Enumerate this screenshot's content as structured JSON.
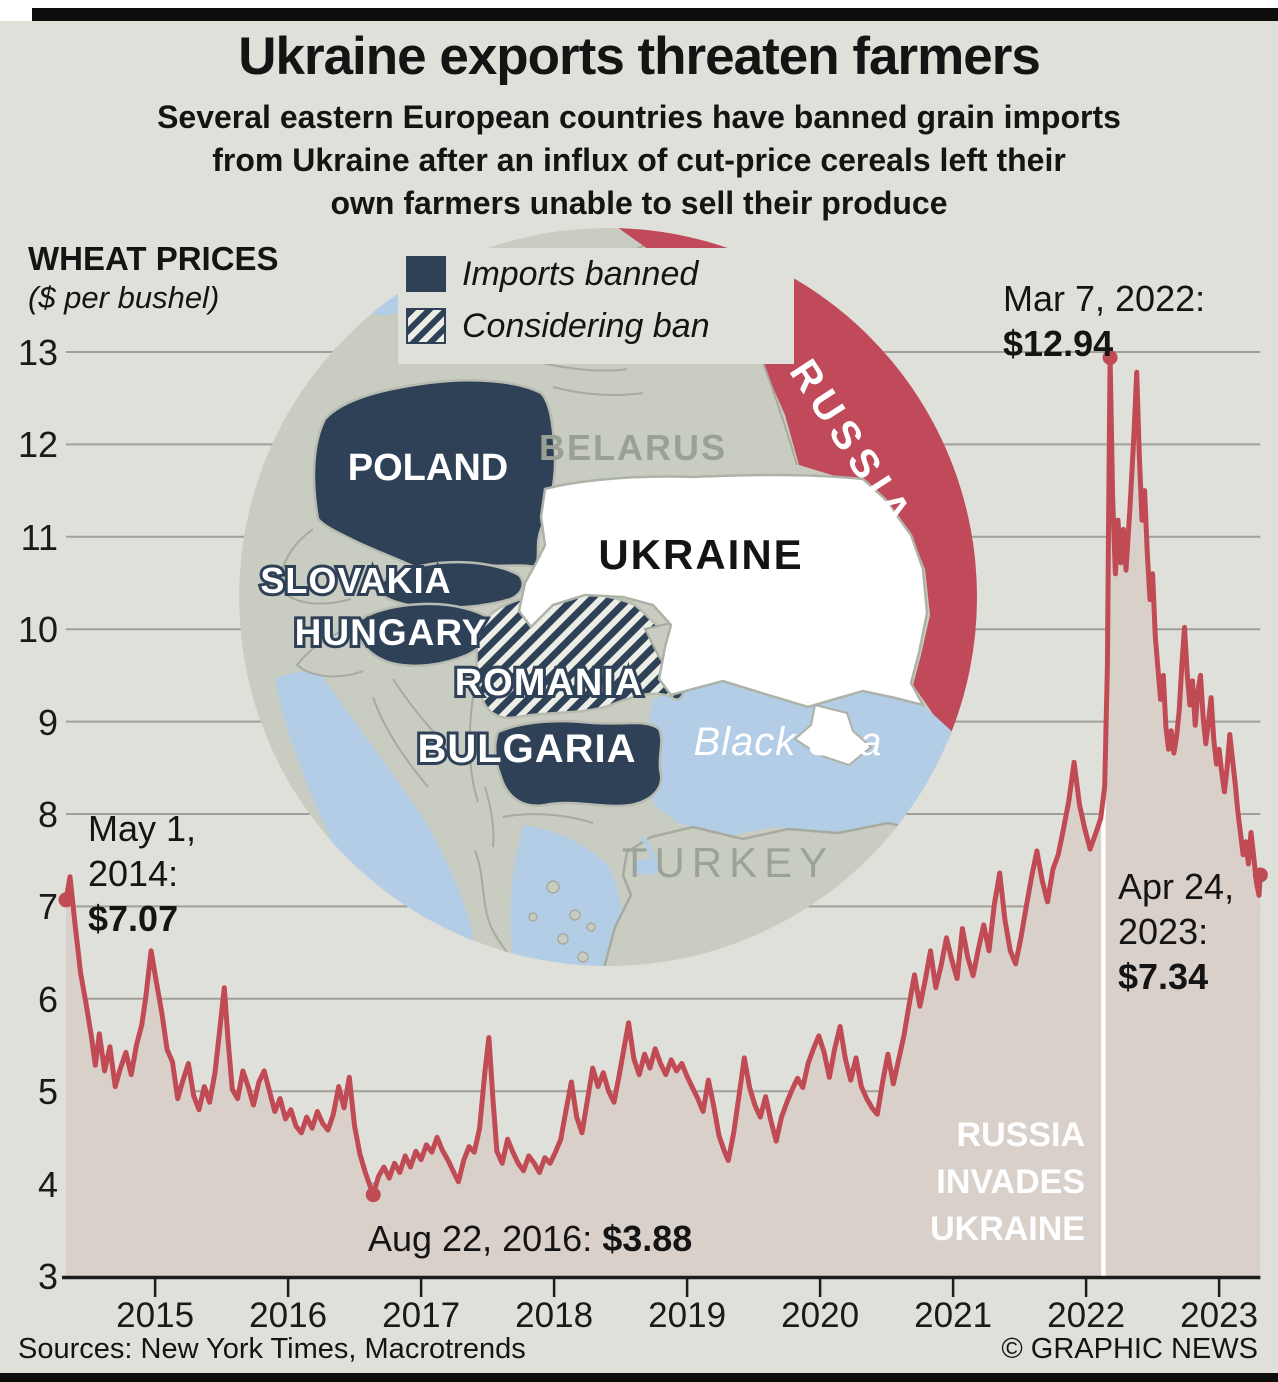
{
  "header": {
    "title": "Ukraine exports threaten farmers",
    "subtitle_line1": "Several eastern European countries have banned grain imports",
    "subtitle_line2": "from Ukraine after an influx of cut-price cereals left their",
    "subtitle_line3": "own farmers unable to sell their produce"
  },
  "legend": {
    "imports_banned": "Imports banned",
    "considering_ban": "Considering ban"
  },
  "map": {
    "labels": {
      "poland": "POLAND",
      "slovakia": "SLOVAKIA",
      "hungary": "HUNGARY",
      "romania": "ROMANIA",
      "bulgaria": "BULGARIA",
      "ukraine": "UKRAINE",
      "belarus": "BELARUS",
      "russia": "RUSSIA",
      "turkey": "TURKEY",
      "black_sea": "Black Sea"
    },
    "status": {
      "imports_banned": [
        "Poland",
        "Slovakia",
        "Hungary",
        "Bulgaria"
      ],
      "considering_ban": [
        "Romania"
      ]
    },
    "colors": {
      "banned_navy": "#2e4157",
      "russia_red": "#c04a5a",
      "land_gray": "#c9ccc0",
      "sea_blue": "#b4cde7",
      "ukraine_white": "#ffffff",
      "border_gray": "#a7ab9f"
    }
  },
  "annotations": {
    "start": {
      "line1": "May 1,",
      "line2": "2014:",
      "value": "$7.07"
    },
    "low": {
      "prefix": "Aug 22, 2016: ",
      "value": "$3.88"
    },
    "peak": {
      "line1": "Mar 7, 2022:",
      "value": "$12.94"
    },
    "end": {
      "line1": "Apr 24,",
      "line2": "2023:",
      "value": "$7.34"
    },
    "invasion": {
      "line1": "RUSSIA",
      "line2": "INVADES",
      "line3": "UKRAINE"
    }
  },
  "footer": {
    "sources": "Sources: New York Times, Macrotrends",
    "credit": "© GRAPHIC NEWS"
  },
  "chart_data": {
    "type": "line",
    "title": "WHEAT PRICES",
    "ylabel": "($ per bushel)",
    "ylim": [
      3,
      13
    ],
    "y_ticks": [
      3,
      4,
      5,
      6,
      7,
      8,
      9,
      10,
      11,
      12,
      13
    ],
    "x_ticks": [
      2015,
      2016,
      2017,
      2018,
      2019,
      2020,
      2021,
      2022,
      2023
    ],
    "grid": true,
    "line_color": "#c04b55",
    "area_color": "#d9d0ca",
    "invasion_marker": {
      "t": 2022.13,
      "label": "RUSSIA INVADES UKRAINE"
    },
    "key_points": [
      {
        "t": 2014.33,
        "v": 7.07,
        "label": "May 1, 2014: $7.07"
      },
      {
        "t": 2016.64,
        "v": 3.88,
        "label": "Aug 22, 2016: $3.88"
      },
      {
        "t": 2022.18,
        "v": 12.94,
        "label": "Mar 7, 2022: $12.94"
      },
      {
        "t": 2023.31,
        "v": 7.34,
        "label": "Apr 24, 2023: $7.34"
      }
    ],
    "points": [
      [
        2014.33,
        7.07
      ],
      [
        2014.36,
        7.32
      ],
      [
        2014.4,
        6.78
      ],
      [
        2014.44,
        6.28
      ],
      [
        2014.48,
        5.95
      ],
      [
        2014.52,
        5.6
      ],
      [
        2014.55,
        5.28
      ],
      [
        2014.58,
        5.62
      ],
      [
        2014.62,
        5.22
      ],
      [
        2014.66,
        5.48
      ],
      [
        2014.7,
        5.05
      ],
      [
        2014.74,
        5.25
      ],
      [
        2014.78,
        5.42
      ],
      [
        2014.82,
        5.18
      ],
      [
        2014.86,
        5.5
      ],
      [
        2014.9,
        5.72
      ],
      [
        2014.93,
        6.02
      ],
      [
        2014.97,
        6.52
      ],
      [
        2015.01,
        6.18
      ],
      [
        2015.05,
        5.85
      ],
      [
        2015.09,
        5.45
      ],
      [
        2015.13,
        5.32
      ],
      [
        2015.17,
        4.92
      ],
      [
        2015.21,
        5.12
      ],
      [
        2015.25,
        5.3
      ],
      [
        2015.29,
        4.95
      ],
      [
        2015.33,
        4.8
      ],
      [
        2015.37,
        5.05
      ],
      [
        2015.41,
        4.88
      ],
      [
        2015.45,
        5.2
      ],
      [
        2015.49,
        5.72
      ],
      [
        2015.52,
        6.12
      ],
      [
        2015.55,
        5.52
      ],
      [
        2015.58,
        5.02
      ],
      [
        2015.62,
        4.92
      ],
      [
        2015.66,
        5.22
      ],
      [
        2015.7,
        5.05
      ],
      [
        2015.74,
        4.85
      ],
      [
        2015.78,
        5.1
      ],
      [
        2015.82,
        5.22
      ],
      [
        2015.86,
        5.0
      ],
      [
        2015.9,
        4.78
      ],
      [
        2015.94,
        4.92
      ],
      [
        2015.98,
        4.7
      ],
      [
        2016.02,
        4.8
      ],
      [
        2016.06,
        4.62
      ],
      [
        2016.1,
        4.55
      ],
      [
        2016.14,
        4.72
      ],
      [
        2016.18,
        4.6
      ],
      [
        2016.22,
        4.78
      ],
      [
        2016.26,
        4.65
      ],
      [
        2016.3,
        4.58
      ],
      [
        2016.34,
        4.75
      ],
      [
        2016.38,
        5.05
      ],
      [
        2016.42,
        4.82
      ],
      [
        2016.46,
        5.15
      ],
      [
        2016.5,
        4.62
      ],
      [
        2016.54,
        4.32
      ],
      [
        2016.58,
        4.12
      ],
      [
        2016.61,
        4.0
      ],
      [
        2016.64,
        3.88
      ],
      [
        2016.68,
        4.08
      ],
      [
        2016.72,
        4.18
      ],
      [
        2016.76,
        4.06
      ],
      [
        2016.8,
        4.22
      ],
      [
        2016.84,
        4.12
      ],
      [
        2016.88,
        4.3
      ],
      [
        2016.92,
        4.18
      ],
      [
        2016.96,
        4.35
      ],
      [
        2017.0,
        4.26
      ],
      [
        2017.04,
        4.42
      ],
      [
        2017.08,
        4.34
      ],
      [
        2017.12,
        4.5
      ],
      [
        2017.16,
        4.36
      ],
      [
        2017.2,
        4.26
      ],
      [
        2017.24,
        4.14
      ],
      [
        2017.28,
        4.02
      ],
      [
        2017.32,
        4.25
      ],
      [
        2017.36,
        4.4
      ],
      [
        2017.4,
        4.34
      ],
      [
        2017.44,
        4.6
      ],
      [
        2017.48,
        5.22
      ],
      [
        2017.51,
        5.58
      ],
      [
        2017.54,
        4.92
      ],
      [
        2017.57,
        4.35
      ],
      [
        2017.61,
        4.22
      ],
      [
        2017.65,
        4.48
      ],
      [
        2017.69,
        4.34
      ],
      [
        2017.73,
        4.22
      ],
      [
        2017.77,
        4.14
      ],
      [
        2017.81,
        4.3
      ],
      [
        2017.85,
        4.22
      ],
      [
        2017.89,
        4.12
      ],
      [
        2017.93,
        4.28
      ],
      [
        2017.97,
        4.22
      ],
      [
        2018.01,
        4.34
      ],
      [
        2018.05,
        4.48
      ],
      [
        2018.09,
        4.8
      ],
      [
        2018.13,
        5.1
      ],
      [
        2018.17,
        4.72
      ],
      [
        2018.21,
        4.55
      ],
      [
        2018.25,
        4.9
      ],
      [
        2018.29,
        5.25
      ],
      [
        2018.33,
        5.05
      ],
      [
        2018.37,
        5.2
      ],
      [
        2018.41,
        5.0
      ],
      [
        2018.45,
        4.88
      ],
      [
        2018.49,
        5.18
      ],
      [
        2018.53,
        5.5
      ],
      [
        2018.56,
        5.74
      ],
      [
        2018.6,
        5.35
      ],
      [
        2018.64,
        5.18
      ],
      [
        2018.68,
        5.4
      ],
      [
        2018.72,
        5.25
      ],
      [
        2018.76,
        5.46
      ],
      [
        2018.8,
        5.3
      ],
      [
        2018.84,
        5.18
      ],
      [
        2018.88,
        5.34
      ],
      [
        2018.92,
        5.22
      ],
      [
        2018.96,
        5.3
      ],
      [
        2019.0,
        5.16
      ],
      [
        2019.04,
        5.04
      ],
      [
        2019.08,
        4.92
      ],
      [
        2019.12,
        4.78
      ],
      [
        2019.16,
        5.12
      ],
      [
        2019.2,
        4.84
      ],
      [
        2019.24,
        4.52
      ],
      [
        2019.28,
        4.35
      ],
      [
        2019.31,
        4.25
      ],
      [
        2019.35,
        4.55
      ],
      [
        2019.39,
        4.95
      ],
      [
        2019.43,
        5.36
      ],
      [
        2019.47,
        5.04
      ],
      [
        2019.51,
        4.85
      ],
      [
        2019.55,
        4.72
      ],
      [
        2019.59,
        4.94
      ],
      [
        2019.63,
        4.68
      ],
      [
        2019.67,
        4.46
      ],
      [
        2019.71,
        4.72
      ],
      [
        2019.75,
        4.88
      ],
      [
        2019.79,
        5.02
      ],
      [
        2019.83,
        5.14
      ],
      [
        2019.87,
        5.04
      ],
      [
        2019.91,
        5.3
      ],
      [
        2019.95,
        5.46
      ],
      [
        2019.99,
        5.6
      ],
      [
        2020.03,
        5.42
      ],
      [
        2020.07,
        5.15
      ],
      [
        2020.11,
        5.46
      ],
      [
        2020.15,
        5.7
      ],
      [
        2020.19,
        5.35
      ],
      [
        2020.23,
        5.12
      ],
      [
        2020.27,
        5.36
      ],
      [
        2020.31,
        5.05
      ],
      [
        2020.35,
        4.92
      ],
      [
        2020.39,
        4.82
      ],
      [
        2020.43,
        4.75
      ],
      [
        2020.47,
        5.1
      ],
      [
        2020.51,
        5.4
      ],
      [
        2020.55,
        5.08
      ],
      [
        2020.59,
        5.34
      ],
      [
        2020.63,
        5.6
      ],
      [
        2020.67,
        5.94
      ],
      [
        2020.71,
        6.26
      ],
      [
        2020.75,
        5.92
      ],
      [
        2020.79,
        6.2
      ],
      [
        2020.83,
        6.52
      ],
      [
        2020.87,
        6.12
      ],
      [
        2020.91,
        6.36
      ],
      [
        2020.95,
        6.66
      ],
      [
        2020.99,
        6.42
      ],
      [
        2021.03,
        6.22
      ],
      [
        2021.07,
        6.76
      ],
      [
        2021.11,
        6.45
      ],
      [
        2021.15,
        6.25
      ],
      [
        2021.19,
        6.54
      ],
      [
        2021.23,
        6.8
      ],
      [
        2021.27,
        6.52
      ],
      [
        2021.31,
        7.02
      ],
      [
        2021.35,
        7.36
      ],
      [
        2021.39,
        6.85
      ],
      [
        2021.43,
        6.52
      ],
      [
        2021.47,
        6.38
      ],
      [
        2021.51,
        6.66
      ],
      [
        2021.55,
        7.0
      ],
      [
        2021.59,
        7.32
      ],
      [
        2021.63,
        7.6
      ],
      [
        2021.67,
        7.28
      ],
      [
        2021.71,
        7.05
      ],
      [
        2021.75,
        7.4
      ],
      [
        2021.79,
        7.56
      ],
      [
        2021.83,
        7.84
      ],
      [
        2021.87,
        8.14
      ],
      [
        2021.91,
        8.56
      ],
      [
        2021.95,
        8.1
      ],
      [
        2021.99,
        7.84
      ],
      [
        2022.03,
        7.62
      ],
      [
        2022.07,
        7.78
      ],
      [
        2022.11,
        7.95
      ],
      [
        2022.14,
        8.3
      ],
      [
        2022.16,
        9.6
      ],
      [
        2022.17,
        11.3
      ],
      [
        2022.18,
        12.94
      ],
      [
        2022.2,
        11.4
      ],
      [
        2022.22,
        10.6
      ],
      [
        2022.24,
        11.18
      ],
      [
        2022.26,
        10.72
      ],
      [
        2022.28,
        11.08
      ],
      [
        2022.3,
        10.64
      ],
      [
        2022.33,
        11.32
      ],
      [
        2022.36,
        12.12
      ],
      [
        2022.38,
        12.78
      ],
      [
        2022.4,
        11.88
      ],
      [
        2022.42,
        11.18
      ],
      [
        2022.44,
        11.5
      ],
      [
        2022.46,
        10.82
      ],
      [
        2022.48,
        10.32
      ],
      [
        2022.5,
        10.6
      ],
      [
        2022.52,
        9.92
      ],
      [
        2022.54,
        9.58
      ],
      [
        2022.56,
        9.24
      ],
      [
        2022.58,
        9.5
      ],
      [
        2022.6,
        8.94
      ],
      [
        2022.62,
        8.7
      ],
      [
        2022.64,
        8.9
      ],
      [
        2022.66,
        8.66
      ],
      [
        2022.68,
        8.84
      ],
      [
        2022.7,
        9.12
      ],
      [
        2022.72,
        9.62
      ],
      [
        2022.74,
        10.02
      ],
      [
        2022.76,
        9.52
      ],
      [
        2022.78,
        9.18
      ],
      [
        2022.8,
        9.44
      ],
      [
        2022.82,
        8.96
      ],
      [
        2022.84,
        9.32
      ],
      [
        2022.86,
        9.5
      ],
      [
        2022.88,
        9.04
      ],
      [
        2022.9,
        8.76
      ],
      [
        2022.92,
        9.0
      ],
      [
        2022.94,
        9.26
      ],
      [
        2022.96,
        8.8
      ],
      [
        2022.98,
        8.54
      ],
      [
        2023.0,
        8.7
      ],
      [
        2023.02,
        8.44
      ],
      [
        2023.04,
        8.24
      ],
      [
        2023.06,
        8.5
      ],
      [
        2023.08,
        8.86
      ],
      [
        2023.1,
        8.6
      ],
      [
        2023.12,
        8.34
      ],
      [
        2023.14,
        8.04
      ],
      [
        2023.16,
        7.8
      ],
      [
        2023.18,
        7.56
      ],
      [
        2023.2,
        7.7
      ],
      [
        2023.22,
        7.46
      ],
      [
        2023.24,
        7.8
      ],
      [
        2023.26,
        7.54
      ],
      [
        2023.28,
        7.26
      ],
      [
        2023.3,
        7.12
      ],
      [
        2023.31,
        7.34
      ]
    ]
  }
}
